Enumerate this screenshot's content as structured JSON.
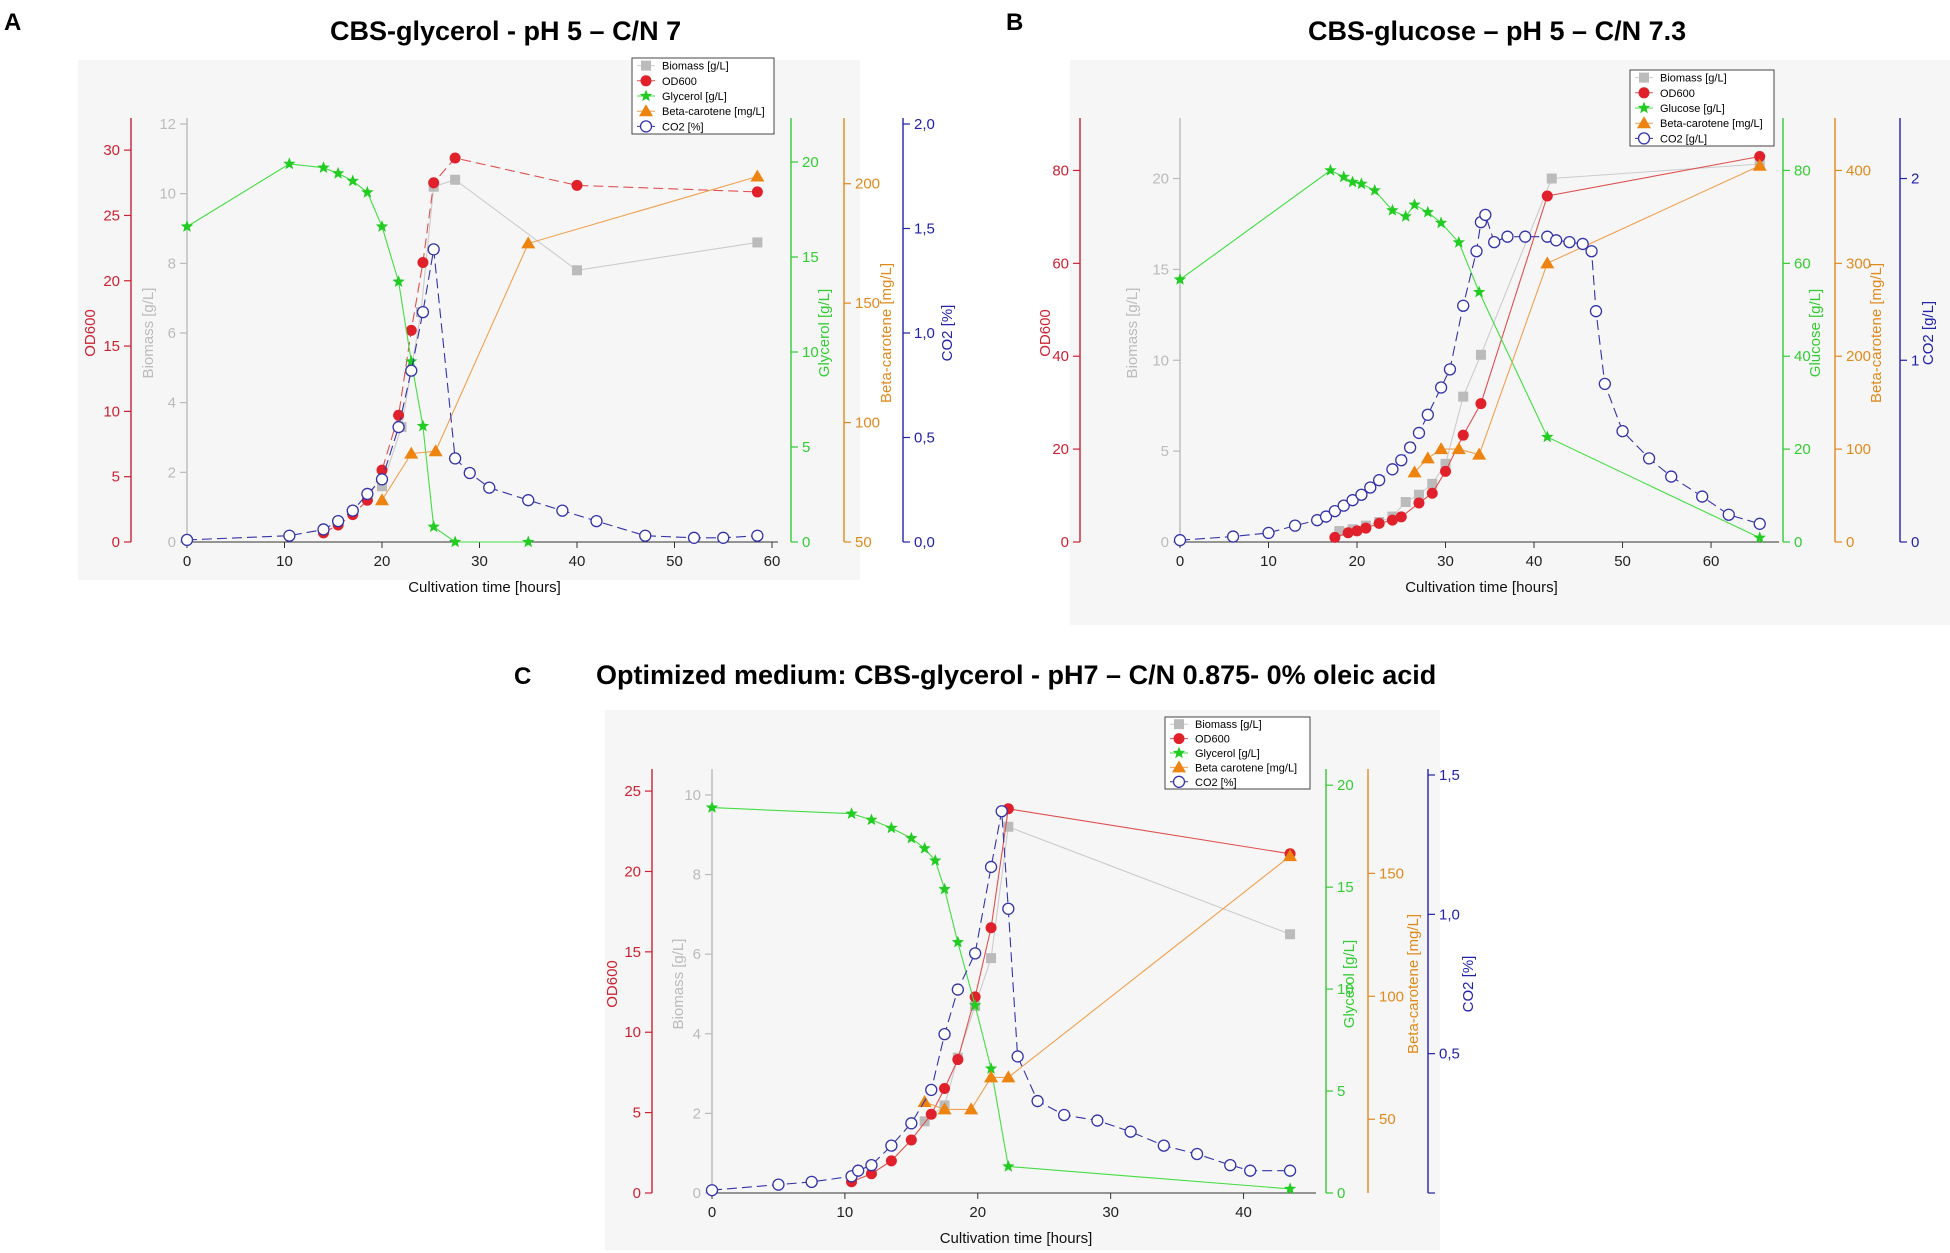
{
  "chart_data": [
    {
      "id": "A",
      "letter": "A",
      "title": "CBS-glycerol - pH 5 – C/N 7",
      "type": "line",
      "xlabel": "Cultivation time [hours]",
      "xlim": [
        0,
        60
      ],
      "xticks": [
        0,
        10,
        20,
        30,
        40,
        50,
        60
      ],
      "axes": {
        "od": {
          "label": "OD600",
          "lim": [
            0,
            32
          ],
          "ticks": [
            0,
            5,
            10,
            15,
            20,
            25,
            30
          ],
          "tickLabels": [
            "0",
            "5",
            "10",
            "15",
            "20",
            "25",
            "30"
          ],
          "color": "#cc2233"
        },
        "bio": {
          "label": "Biomass [g/L]",
          "lim": [
            0,
            12
          ],
          "ticks": [
            0,
            2,
            4,
            6,
            8,
            10,
            12
          ],
          "tickLabels": [
            "0",
            "2",
            "4",
            "6",
            "8",
            "10",
            "12"
          ],
          "color": "#bbbbbb"
        },
        "sub": {
          "label": "Glycerol [g/L]",
          "lim": [
            0,
            22
          ],
          "ticks": [
            0,
            5,
            10,
            15,
            20
          ],
          "tickLabels": [
            "0",
            "5",
            "10",
            "15",
            "20"
          ],
          "color": "#33cc33"
        },
        "bc": {
          "label": "Beta-carotene [mg/L]",
          "lim": [
            50,
            225
          ],
          "ticks": [
            50,
            100,
            150,
            200
          ],
          "tickLabels": [
            "50",
            "100",
            "150",
            "200"
          ],
          "color": "#e08a1e"
        },
        "co2": {
          "label": "CO2 [%]",
          "lim": [
            0,
            2
          ],
          "ticks": [
            0,
            0.5,
            1,
            1.5,
            2
          ],
          "tickLabels": [
            "0,0",
            "0,5",
            "1,0",
            "1,5",
            "2,0"
          ],
          "color": "#2222aa"
        }
      },
      "legend": [
        "Biomass [g/L]",
        "OD600",
        "Glycerol [g/L]",
        "Beta-carotene [mg/L]",
        "CO2 [%]"
      ],
      "series": [
        {
          "name": "Biomass [g/L]",
          "axis": "bio",
          "marker": "square",
          "color": "#bbbbbb",
          "line": "#cccccc",
          "x": [
            20,
            22,
            24,
            25.3,
            27.5,
            40,
            58.5
          ],
          "y": [
            1.6,
            3.3,
            6.6,
            10.2,
            10.4,
            7.8,
            8.6
          ]
        },
        {
          "name": "OD600",
          "axis": "od",
          "marker": "circle",
          "color": "#e0202a",
          "line": "#e05050",
          "dashed": true,
          "x": [
            14,
            15.5,
            17,
            18.5,
            20,
            21.7,
            23,
            24.2,
            25.3,
            27.5,
            40,
            58.5
          ],
          "y": [
            0.7,
            1.3,
            2.1,
            3.2,
            5.5,
            9.7,
            16.2,
            21.4,
            27.5,
            29.4,
            27.3,
            26.8
          ]
        },
        {
          "name": "Glycerol [g/L]",
          "axis": "sub",
          "marker": "star",
          "color": "#22cc22",
          "line": "#44dd44",
          "x": [
            0,
            10.5,
            14,
            15.5,
            17,
            18.5,
            20,
            21.7,
            23,
            24.2,
            25.3,
            27.5,
            35
          ],
          "y": [
            16.6,
            19.9,
            19.7,
            19.4,
            19.0,
            18.4,
            16.6,
            13.7,
            9.5,
            6.1,
            0.8,
            0.0,
            0.0
          ]
        },
        {
          "name": "Beta-carotene [mg/L]",
          "axis": "bc",
          "marker": "triangle",
          "color": "#ee8410",
          "line": "#f0a050",
          "x": [
            20,
            23,
            25.5,
            35,
            58.5
          ],
          "y": [
            67.5,
            87,
            88,
            175,
            203
          ]
        },
        {
          "name": "CO2 [%]",
          "axis": "co2",
          "marker": "ocircle",
          "color": "#3333aa",
          "line": "#3333aa",
          "dashed": true,
          "x": [
            0,
            10.5,
            14,
            15.5,
            17,
            18.5,
            20,
            21.7,
            23,
            24.2,
            25.3,
            27.5,
            29,
            31,
            35,
            38.5,
            42,
            47,
            52,
            55,
            58.5
          ],
          "y": [
            0.01,
            0.03,
            0.06,
            0.1,
            0.15,
            0.23,
            0.3,
            0.55,
            0.82,
            1.1,
            1.4,
            0.4,
            0.33,
            0.26,
            0.2,
            0.15,
            0.1,
            0.03,
            0.02,
            0.02,
            0.03
          ]
        }
      ]
    },
    {
      "id": "B",
      "letter": "B",
      "title": "CBS-glucose – pH 5 – C/N 7.3",
      "type": "line",
      "xlabel": "Cultivation time [hours]",
      "xlim": [
        0,
        67
      ],
      "xticks": [
        0,
        10,
        20,
        30,
        40,
        50,
        60
      ],
      "axes": {
        "od": {
          "label": "OD600",
          "lim": [
            0,
            90
          ],
          "ticks": [
            0,
            20,
            40,
            60,
            80
          ],
          "tickLabels": [
            "0",
            "20",
            "40",
            "60",
            "80"
          ],
          "color": "#cc2233"
        },
        "bio": {
          "label": "Biomass [g/L]",
          "lim": [
            0,
            23
          ],
          "ticks": [
            0,
            5,
            10,
            15,
            20
          ],
          "tickLabels": [
            "0",
            "5",
            "10",
            "15",
            "20"
          ],
          "color": "#bbbbbb"
        },
        "sub": {
          "label": "Glucose [g/L]",
          "lim": [
            0,
            90
          ],
          "ticks": [
            0,
            20,
            40,
            60,
            80
          ],
          "tickLabels": [
            "0",
            "20",
            "40",
            "60",
            "80"
          ],
          "color": "#33cc33"
        },
        "bc": {
          "label": "Beta-carotene [mg/L]",
          "lim": [
            0,
            450
          ],
          "ticks": [
            0,
            100,
            200,
            300,
            400
          ],
          "tickLabels": [
            "0",
            "100",
            "200",
            "300",
            "400"
          ],
          "color": "#e08a1e"
        },
        "co2": {
          "label": "CO2 [g/L]",
          "lim": [
            0,
            2.3
          ],
          "ticks": [
            0,
            1,
            2
          ],
          "tickLabels": [
            "0",
            "1",
            "2"
          ],
          "color": "#2222aa"
        }
      },
      "legend": [
        "Biomass [g/L]",
        "OD600",
        "Glucose [g/L]",
        "Beta-carotene [mg/L]",
        "CO2 [g/L]"
      ],
      "series": [
        {
          "name": "Biomass [g/L]",
          "axis": "bio",
          "marker": "square",
          "color": "#bbbbbb",
          "line": "#cccccc",
          "x": [
            18,
            19.5,
            21,
            22.5,
            24,
            25.5,
            27,
            28.5,
            30,
            32,
            34,
            42,
            65.5
          ],
          "y": [
            0.6,
            0.7,
            0.9,
            1.1,
            1.4,
            2.2,
            2.6,
            3.2,
            4.3,
            8.0,
            10.3,
            20.0,
            20.8
          ]
        },
        {
          "name": "OD600",
          "axis": "od",
          "marker": "circle",
          "color": "#e0202a",
          "line": "#e05050",
          "x": [
            17.5,
            19,
            20,
            21,
            22.5,
            24,
            25,
            27,
            28.5,
            30,
            32,
            34,
            41.5,
            65.5
          ],
          "y": [
            1,
            2,
            2.4,
            3,
            4,
            4.7,
            5.4,
            8.4,
            10.5,
            15.2,
            23,
            29.8,
            74.5,
            83
          ]
        },
        {
          "name": "Glucose [g/L]",
          "axis": "sub",
          "marker": "star",
          "color": "#22cc22",
          "line": "#44dd44",
          "x": [
            0,
            17,
            18.5,
            19.5,
            20.5,
            22,
            24,
            25.5,
            26.5,
            28,
            29.5,
            31.5,
            33.8,
            41.5,
            65.5
          ],
          "y": [
            56.5,
            80,
            78.6,
            77.5,
            77.1,
            75.7,
            71.4,
            70.1,
            72.6,
            71,
            68.7,
            64.5,
            53.8,
            22.6,
            0.9
          ]
        },
        {
          "name": "Beta-carotene [mg/L]",
          "axis": "bc",
          "marker": "triangle",
          "color": "#ee8410",
          "line": "#f0a050",
          "x": [
            26.5,
            28,
            29.5,
            31.5,
            33.8,
            41.5,
            65.5
          ],
          "y": [
            75,
            90,
            100,
            100,
            94,
            300,
            405
          ]
        },
        {
          "name": "CO2 [g/L]",
          "axis": "co2",
          "marker": "ocircle",
          "color": "#3333aa",
          "line": "#3333aa",
          "dashed": true,
          "x": [
            0,
            6,
            10,
            13,
            15.5,
            16.5,
            17.5,
            18.5,
            19.5,
            20.5,
            21.5,
            22.5,
            24,
            25,
            26,
            27,
            28,
            29.5,
            30.5,
            32,
            33.5,
            34,
            34.5,
            35.5,
            37,
            39,
            41.5,
            42.5,
            44,
            45.5,
            46.5,
            47,
            48,
            50,
            53,
            55.5,
            59,
            62,
            65.5
          ],
          "y": [
            0.01,
            0.03,
            0.05,
            0.09,
            0.12,
            0.14,
            0.17,
            0.2,
            0.23,
            0.26,
            0.3,
            0.34,
            0.4,
            0.45,
            0.52,
            0.6,
            0.7,
            0.85,
            0.95,
            1.3,
            1.6,
            1.76,
            1.8,
            1.65,
            1.68,
            1.68,
            1.68,
            1.66,
            1.65,
            1.64,
            1.6,
            1.27,
            0.87,
            0.61,
            0.46,
            0.36,
            0.25,
            0.15,
            0.1
          ]
        }
      ]
    },
    {
      "id": "C",
      "letter": "C",
      "title": "Optimized medium: CBS-glycerol - pH7 – C/N 0.875- 0% oleic acid",
      "type": "line",
      "xlabel": "Cultivation time [hours]",
      "xlim": [
        0,
        45
      ],
      "xticks": [
        0,
        10,
        20,
        30,
        40
      ],
      "axes": {
        "od": {
          "label": "OD600",
          "lim": [
            0,
            26
          ],
          "ticks": [
            0,
            5,
            10,
            15,
            20,
            25
          ],
          "tickLabels": [
            "0",
            "5",
            "10",
            "15",
            "20",
            "25"
          ],
          "color": "#cc2233"
        },
        "bio": {
          "label": "Biomass [g/L]",
          "lim": [
            0,
            10.5
          ],
          "ticks": [
            0,
            2,
            4,
            6,
            8,
            10
          ],
          "tickLabels": [
            "0",
            "2",
            "4",
            "6",
            "8",
            "10"
          ],
          "color": "#bbbbbb"
        },
        "sub": {
          "label": "Glycerol [g/L]",
          "lim": [
            0,
            20.5
          ],
          "ticks": [
            0,
            5,
            10,
            15,
            20
          ],
          "tickLabels": [
            "0",
            "5",
            "10",
            "15",
            "20"
          ],
          "color": "#33cc33"
        },
        "bc": {
          "label": "Beta-carotene [mg/L]",
          "lim": [
            20,
            190
          ],
          "ticks": [
            50,
            100,
            150
          ],
          "tickLabels": [
            "50",
            "100",
            "150"
          ],
          "color": "#e08a1e"
        },
        "co2": {
          "label": "CO2 [%]",
          "lim": [
            0,
            1.5
          ],
          "ticks": [
            0,
            0.5,
            1,
            1.5
          ],
          "tickLabels": [
            "",
            "0,5",
            "1,0",
            "1,5"
          ],
          "color": "#2222aa"
        }
      },
      "legend": [
        "Biomass [g/L]",
        "OD600",
        "Glycerol [g/L]",
        "Beta carotene [mg/L]",
        "CO2 [%]"
      ],
      "series": [
        {
          "name": "Biomass [g/L]",
          "axis": "bio",
          "marker": "square",
          "color": "#bbbbbb",
          "line": "#cccccc",
          "x": [
            16,
            17.5,
            18.5,
            19.8,
            21,
            22.3,
            43.5
          ],
          "y": [
            1.8,
            2.2,
            3.4,
            4.7,
            5.9,
            9.2,
            6.5
          ]
        },
        {
          "name": "OD600",
          "axis": "od",
          "marker": "circle",
          "color": "#e0202a",
          "line": "#e05050",
          "x": [
            10.5,
            12,
            13.5,
            15,
            16.5,
            17.5,
            18.5,
            19.8,
            21,
            22.3,
            43.5
          ],
          "y": [
            0.7,
            1.2,
            2,
            3.3,
            4.9,
            6.5,
            8.3,
            12.2,
            16.5,
            23.9,
            21.1
          ]
        },
        {
          "name": "Glycerol [g/L]",
          "axis": "sub",
          "marker": "star",
          "color": "#22cc22",
          "line": "#44dd44",
          "x": [
            0,
            10.5,
            12,
            13.5,
            15,
            16,
            16.8,
            17.5,
            18.5,
            19.8,
            21,
            22.3,
            43.5
          ],
          "y": [
            18.9,
            18.6,
            18.3,
            17.9,
            17.4,
            16.9,
            16.3,
            14.9,
            12.3,
            9.2,
            6.1,
            1.3,
            0.2
          ]
        },
        {
          "name": "Beta carotene [mg/L]",
          "axis": "bc",
          "marker": "triangle",
          "color": "#ee8410",
          "line": "#f0a050",
          "x": [
            16,
            17.5,
            19.5,
            21,
            22.3,
            43.5
          ],
          "y": [
            57,
            54,
            54,
            67,
            67,
            157
          ]
        },
        {
          "name": "CO2 [%]",
          "axis": "co2",
          "marker": "ocircle",
          "color": "#3333aa",
          "line": "#3333aa",
          "dashed": true,
          "x": [
            0,
            5,
            7.5,
            10.5,
            11,
            12,
            13.5,
            15,
            16.5,
            17.5,
            18.5,
            19.8,
            21,
            21.8,
            22.3,
            23,
            24.5,
            26.5,
            29,
            31.5,
            34,
            36.5,
            39,
            40.5,
            43.5
          ],
          "y": [
            0.01,
            0.03,
            0.04,
            0.06,
            0.08,
            0.1,
            0.17,
            0.25,
            0.37,
            0.57,
            0.73,
            0.86,
            1.17,
            1.37,
            1.02,
            0.49,
            0.33,
            0.28,
            0.26,
            0.22,
            0.17,
            0.14,
            0.1,
            0.08,
            0.08
          ]
        }
      ]
    }
  ]
}
